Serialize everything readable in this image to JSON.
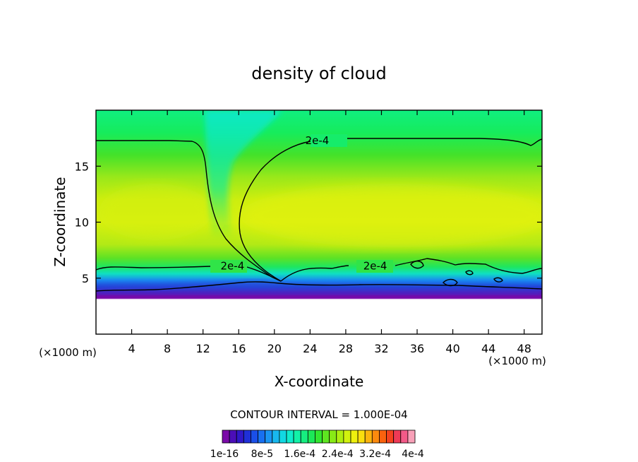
{
  "chart_data": {
    "type": "heatmap",
    "title": "density of cloud",
    "xlabel": "X-coordinate",
    "ylabel": "Z-coordinate",
    "x_unit": "(×1000 m)",
    "x_unit_left": "(×1000 m)",
    "xlim": [
      0,
      50
    ],
    "ylim": [
      0,
      20
    ],
    "x_ticks": [
      4,
      8,
      12,
      16,
      20,
      24,
      28,
      32,
      36,
      40,
      44,
      48
    ],
    "y_ticks": [
      5,
      10,
      15
    ],
    "contour_interval_label": "CONTOUR INTERVAL = 1.000E-04",
    "contour_level_label": "2e-4",
    "contour_labels": [
      {
        "text": "2e-4",
        "x": 24.8,
        "z": 17.3
      },
      {
        "text": "2e-4",
        "x": 15.3,
        "z": 6.1
      },
      {
        "text": "2e-4",
        "x": 31.3,
        "z": 6.1
      }
    ],
    "colorbar": {
      "colors": [
        "#7a0aa8",
        "#4b0eb8",
        "#3018c8",
        "#1f30d8",
        "#1a4fe8",
        "#1870f0",
        "#1a95f2",
        "#18b8ee",
        "#12d8e2",
        "#10eccc",
        "#12f2a8",
        "#16ee80",
        "#1ce858",
        "#32e630",
        "#5ee620",
        "#88ea16",
        "#aeee10",
        "#d2f20e",
        "#eef00e",
        "#fade0e",
        "#fcb40e",
        "#fc8a0e",
        "#fa620e",
        "#f4421e",
        "#ee3a56",
        "#f25a88",
        "#f8a0b8"
      ],
      "tick_labels": [
        "1e-16",
        "8e-5",
        "1.6e-4",
        "2.4e-4",
        "3.2e-4",
        "4e-4"
      ]
    }
  }
}
